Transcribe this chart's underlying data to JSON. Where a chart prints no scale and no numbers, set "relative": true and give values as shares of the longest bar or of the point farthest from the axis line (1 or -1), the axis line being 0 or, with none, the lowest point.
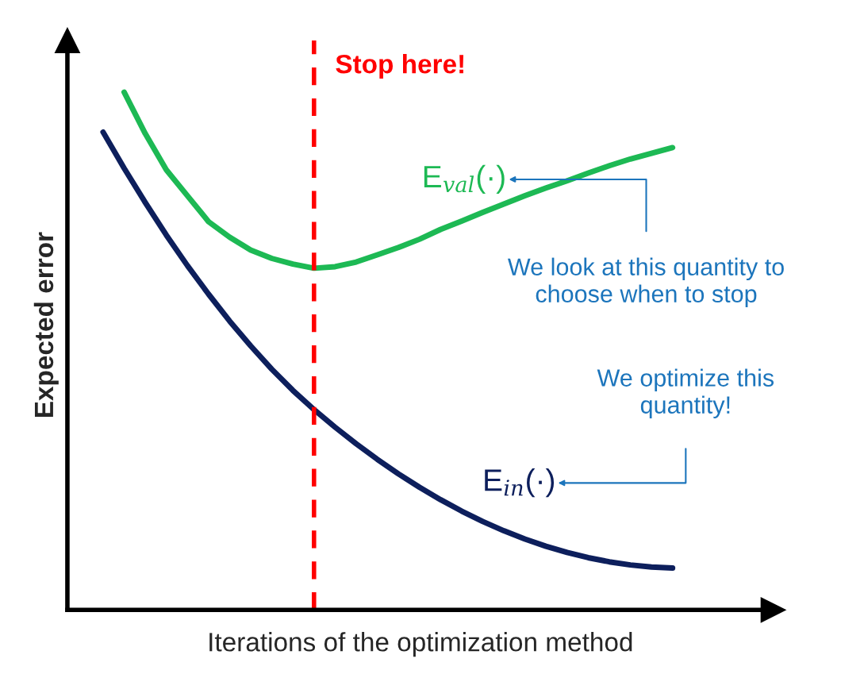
{
  "chart_data": {
    "type": "line",
    "relative": true,
    "xlabel": "Iterations of the optimization method",
    "ylabel": "Expected error",
    "categories": [
      null,
      null,
      null,
      null,
      null,
      null,
      null,
      null,
      null,
      null,
      null,
      null,
      null,
      null,
      null,
      null,
      null,
      null,
      null,
      null,
      null,
      null,
      null,
      null,
      null,
      null,
      null,
      null
    ],
    "tick_labels": false,
    "legend": false,
    "marker": "none",
    "line_style": "solid",
    "series": [
      {
        "name": "E$_{val}$(·)",
        "color": "#1db954",
        "values": [
          null,
          1.0,
          0.92,
          0.85,
          0.8,
          0.75,
          0.72,
          0.695,
          0.679,
          0.668,
          0.66,
          0.663,
          0.672,
          0.686,
          0.7,
          0.716,
          0.735,
          0.751,
          0.768,
          0.784,
          0.8,
          0.815,
          0.829,
          0.844,
          0.858,
          0.871,
          0.882,
          0.893
        ]
      },
      {
        "name": "E$_{in}$(·)",
        "color": "#0d1f5c",
        "values": [
          0.923,
          0.853,
          0.787,
          0.724,
          0.665,
          0.61,
          0.558,
          0.51,
          0.465,
          0.424,
          0.387,
          0.353,
          0.321,
          0.291,
          0.263,
          0.237,
          0.213,
          0.191,
          0.171,
          0.153,
          0.137,
          0.123,
          0.111,
          0.101,
          0.093,
          0.087,
          0.083,
          0.081
        ]
      }
    ],
    "annotations": [
      "Stop here!",
      "We look at this quantity to\nchoose when to stop",
      "We optimize this\nquantity!"
    ]
  }
}
